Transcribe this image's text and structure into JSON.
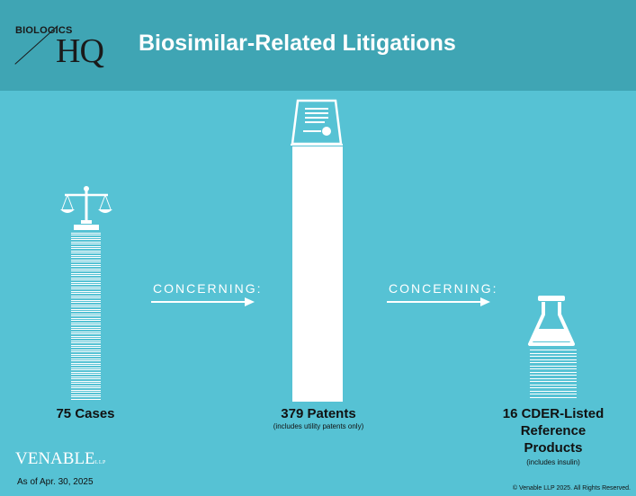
{
  "header": {
    "logo_small": "BIOLOGICS",
    "logo_large": "HQ",
    "title": "Biosimilar-Related Litigations"
  },
  "connectors": {
    "left": "CONCERNING:",
    "right": "CONCERNING:"
  },
  "figures": {
    "cases": {
      "value": 75,
      "label": "75 Cases",
      "icon": "scales-of-justice-icon"
    },
    "patents": {
      "value": 379,
      "label": "379 Patents",
      "note": "(includes utility patents only)",
      "icon": "patent-certificate-icon"
    },
    "products": {
      "value": 16,
      "label_line1": "16 CDER-Listed",
      "label_line2": "Reference",
      "label_line3": "Products",
      "note": "(includes insulin)",
      "icon": "erlenmeyer-flask-icon"
    }
  },
  "footer": {
    "brand": "VENABLE",
    "brand_suffix": "LLP",
    "as_of": "As of Apr. 30, 2025",
    "copyright": "© Venable LLP 2025. All Rights Reserved."
  },
  "colors": {
    "background": "#56c2d4",
    "header": "#3fa5b4",
    "accent_white": "#ffffff"
  }
}
